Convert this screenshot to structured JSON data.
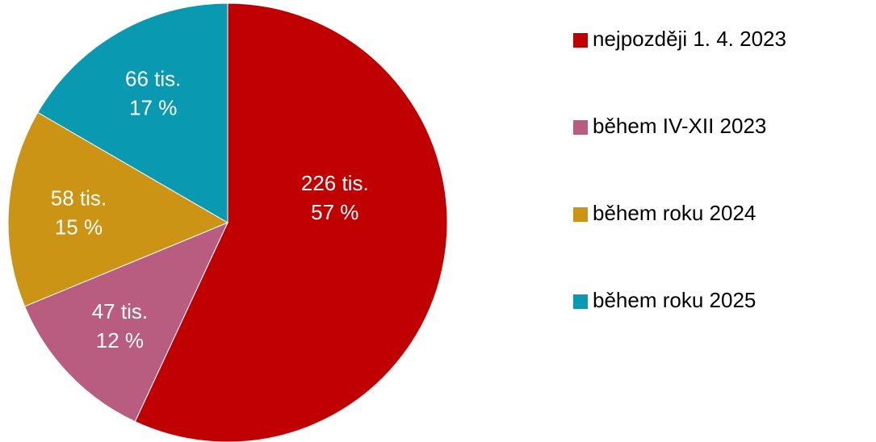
{
  "chart_data": {
    "type": "pie",
    "categories": [
      "nejpozději 1. 4. 2023",
      "během IV-XII 2023",
      "během roku 2024",
      "během roku 2025"
    ],
    "values": [
      226,
      47,
      58,
      66
    ],
    "value_labels": [
      "226 tis.",
      "47 tis.",
      "58 tis.",
      "66 tis."
    ],
    "percentages": [
      57,
      12,
      15,
      17
    ],
    "percentage_labels": [
      "57 %",
      "12 %",
      "15 %",
      "17 %"
    ],
    "colors": [
      "#c00000",
      "#b85c80",
      "#cc9414",
      "#0999b0"
    ],
    "legend": "right"
  }
}
